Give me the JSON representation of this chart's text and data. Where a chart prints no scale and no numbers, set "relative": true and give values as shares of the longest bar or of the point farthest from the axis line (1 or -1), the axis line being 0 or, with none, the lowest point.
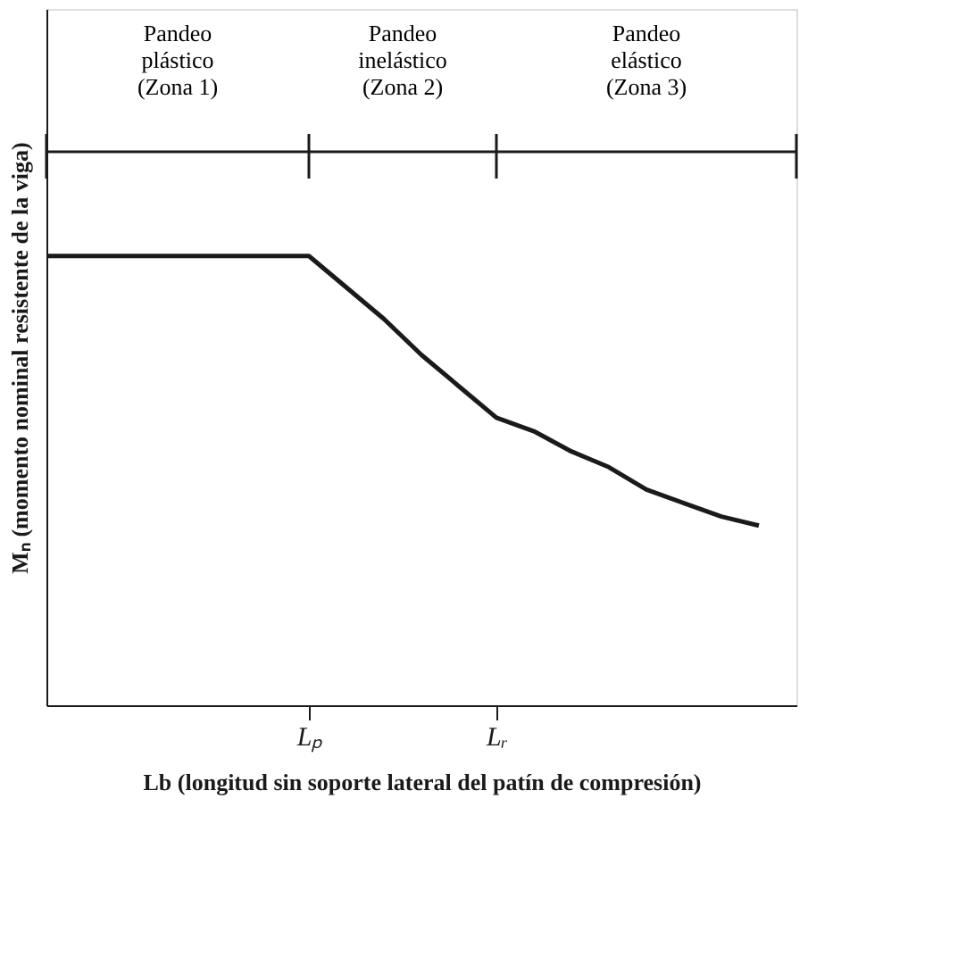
{
  "chart_data": {
    "type": "line",
    "relative": true,
    "xlabel": "Lb (longitud sin soporte lateral del patín de compresión)",
    "ylabel": "Mₙ (momento nominal resistente de la viga)",
    "categories": [
      null,
      null,
      null,
      null,
      null,
      null,
      null,
      "Lₚ",
      null,
      null,
      null,
      null,
      "Lᵣ",
      null,
      null,
      null,
      null,
      null,
      null,
      null,
      null
    ],
    "series": [
      {
        "color": "#1a1a1a",
        "values": [
          1,
          1,
          1,
          1,
          1,
          1,
          1,
          1,
          0.93,
          0.86,
          0.78,
          0.71,
          0.64,
          0.61,
          0.565,
          0.53,
          0.48,
          0.45,
          0.42,
          0.4,
          null
        ]
      }
    ],
    "annotations": [
      "Pandeo\nplástico\n(Zona 1)",
      "Pandeo\ninelástico\n(Zona 2)",
      "Pandeo\nelástico\n(Zona 3)"
    ],
    "grid": false,
    "legend": false,
    "marker": "none",
    "line_style": "solid",
    "tick_labels": "x"
  }
}
